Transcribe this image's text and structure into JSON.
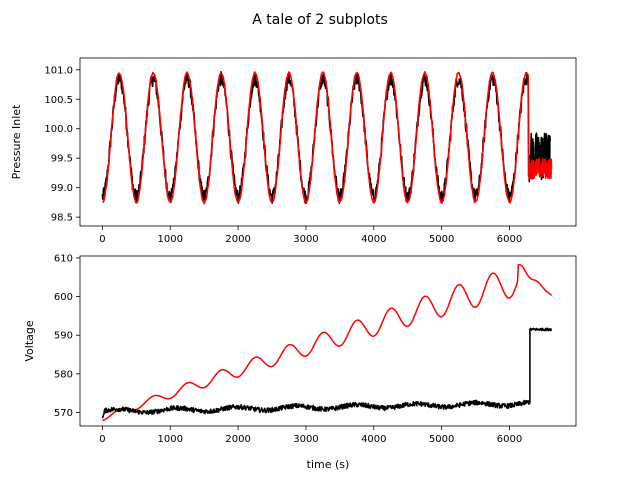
{
  "figure": {
    "title": "A tale of 2 subplots"
  },
  "chart_data": [
    {
      "type": "line",
      "title": "",
      "xlabel": "",
      "ylabel": "Pressure Inlet",
      "xlim": [
        -330,
        6980
      ],
      "ylim": [
        98.35,
        101.2
      ],
      "xticks": [
        0,
        1000,
        2000,
        3000,
        4000,
        5000,
        6000
      ],
      "yticks": [
        98.5,
        99.0,
        99.5,
        100.0,
        100.5,
        101.0
      ],
      "ytick_labels": [
        "98.5",
        "99.0",
        "99.5",
        "100.0",
        "100.5",
        "101.0"
      ],
      "grid": false,
      "series": [
        {
          "color": "#000000",
          "x_range": [
            0,
            6280
          ],
          "period": 500,
          "mean": 99.85,
          "amplitude": 1.0,
          "noise": 0.12,
          "tail_x": [
            6280,
            6600
          ],
          "tail_range": [
            99.1,
            99.95
          ]
        },
        {
          "color": "#ff0000",
          "x_range": [
            0,
            6620
          ],
          "period": 500,
          "mean": 99.85,
          "amplitude": 1.1,
          "noise": 0.02,
          "tail_x": [
            6280,
            6620
          ],
          "tail_range": [
            99.15,
            99.5
          ]
        }
      ]
    },
    {
      "type": "line",
      "title": "",
      "xlabel": "time (s)",
      "ylabel": "Voltage",
      "xlim": [
        -330,
        6980
      ],
      "ylim": [
        566.5,
        610.5
      ],
      "xticks": [
        0,
        1000,
        2000,
        3000,
        4000,
        5000,
        6000
      ],
      "yticks": [
        570,
        580,
        590,
        600,
        610
      ],
      "ytick_labels": [
        "570",
        "580",
        "590",
        "600",
        "610"
      ],
      "grid": false,
      "series": [
        {
          "color": "#ff0000",
          "x_range": [
            0,
            6620
          ],
          "period": 500,
          "start": 568.5,
          "peak_x": 6120,
          "peak_value": 608.2,
          "end_value": 600.3,
          "amplitude_start": 0.6,
          "amplitude_end": 4.0
        },
        {
          "color": "#000000",
          "x_range": [
            0,
            6300
          ],
          "baseline": 570.3,
          "drift_end": 572.3,
          "noise": 0.6,
          "step_x": 6300,
          "step_value": 591.5,
          "end_x": 6620
        }
      ]
    }
  ]
}
